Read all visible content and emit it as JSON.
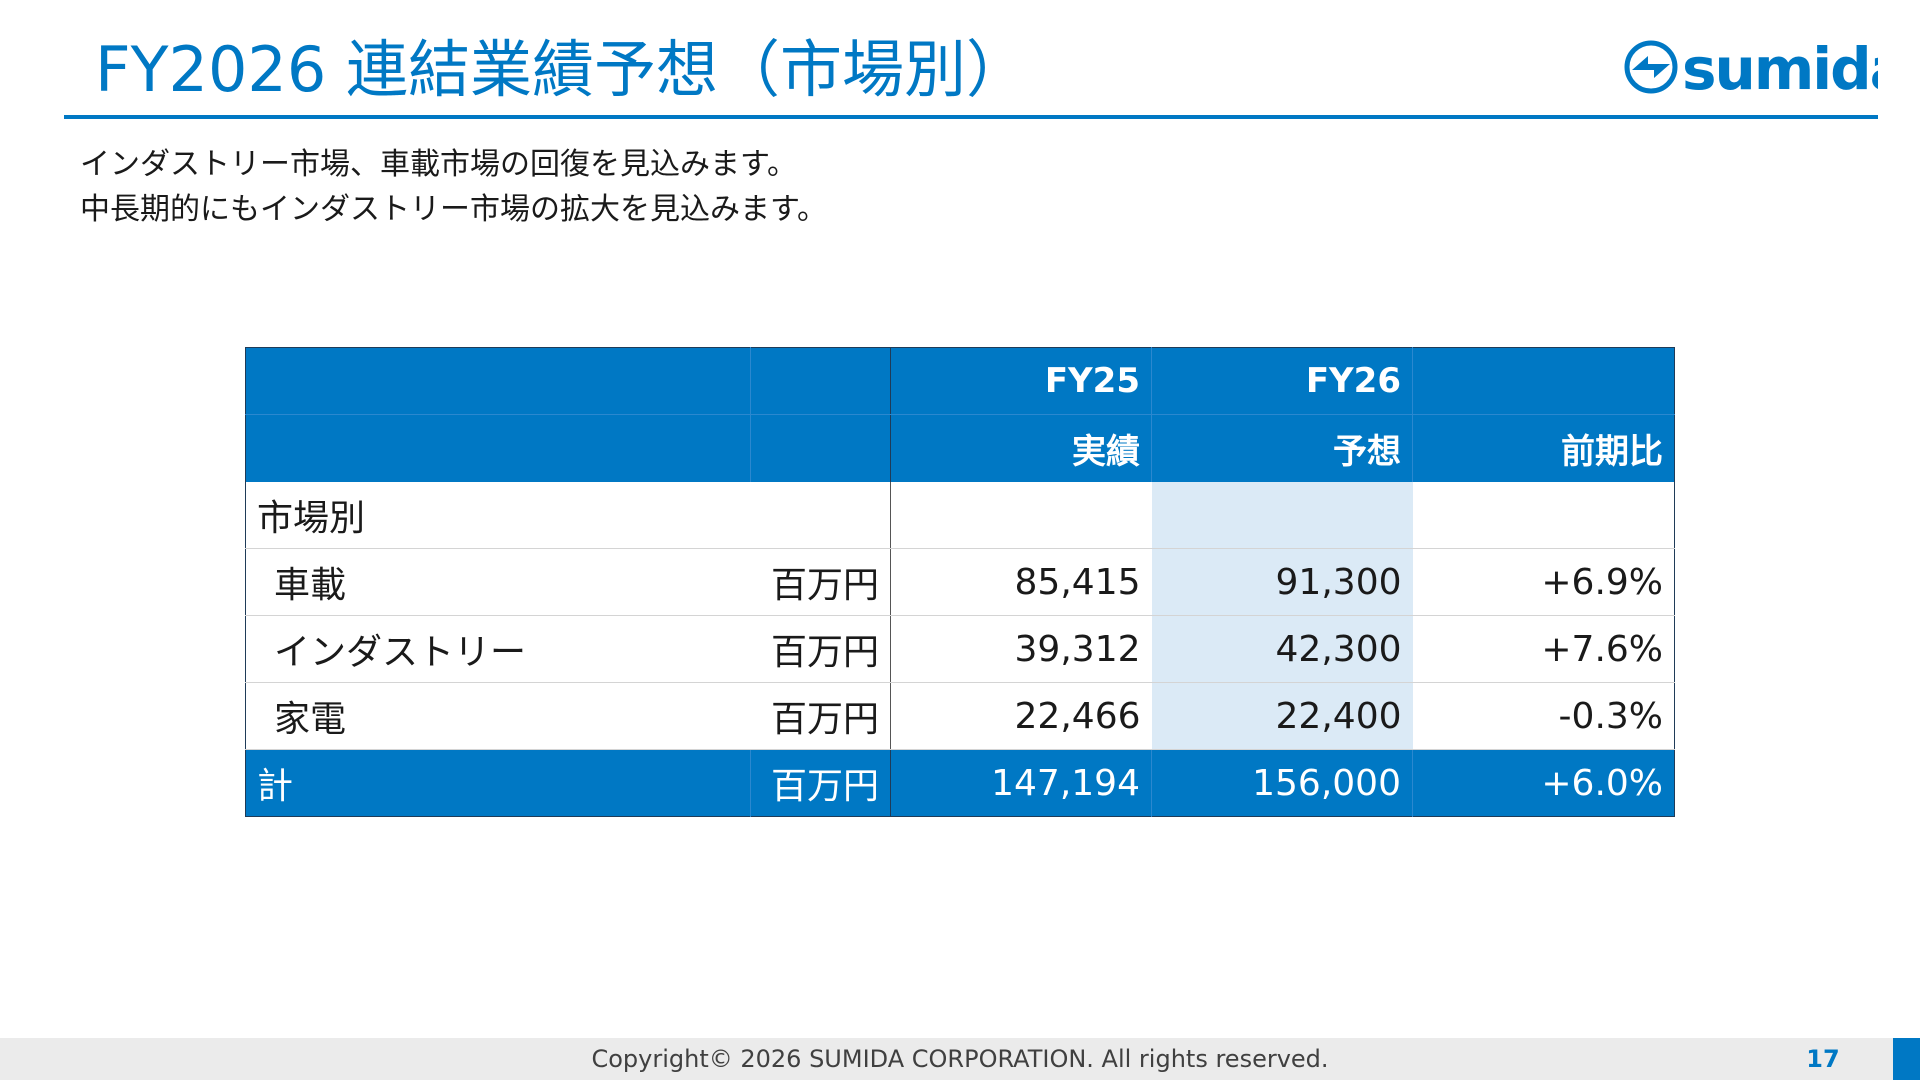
{
  "header": {
    "title": "FY2026 連結業績予想（市場別）",
    "logo_text": "sumida"
  },
  "intro": {
    "line1": "インダストリー市場、車載市場の回復を見込みます。",
    "line2": "中長期的にもインダストリー市場の拡大を見込みます。"
  },
  "table": {
    "header_row1": {
      "fy25": "FY25",
      "fy26": "FY26"
    },
    "header_row2": {
      "fy25_sub": "実績",
      "fy26_sub": "予想",
      "change": "前期比"
    },
    "section_label": "市場別",
    "rows": [
      {
        "label": "車載",
        "unit": "百万円",
        "fy25": "85,415",
        "fy26": "91,300",
        "change": "+6.9%"
      },
      {
        "label": "インダストリー",
        "unit": "百万円",
        "fy25": "39,312",
        "fy26": "42,300",
        "change": "+7.6%"
      },
      {
        "label": "家電",
        "unit": "百万円",
        "fy25": "22,466",
        "fy26": "22,400",
        "change": "-0.3%"
      }
    ],
    "total": {
      "label": "計",
      "unit": "百万円",
      "fy25": "147,194",
      "fy26": "156,000",
      "change": "+6.0%"
    }
  },
  "footer": {
    "copyright": "Copyright© 2026 SUMIDA CORPORATION. All rights reserved.",
    "page_number": "17"
  },
  "colors": {
    "brand_blue": "#0078c4",
    "forecast_shade": "#dbeaf6"
  }
}
